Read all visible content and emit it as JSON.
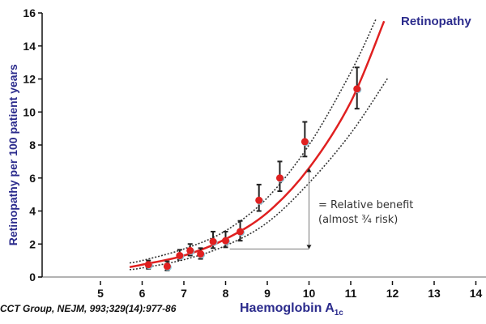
{
  "chart_data": {
    "type": "scatter",
    "title": "Retinopathy",
    "xlabel": "Haemoglobin A",
    "xlabel_subscript": "1c",
    "ylabel": "Retinopathy per 100 patient years",
    "xlim": [
      3.5,
      14.3
    ],
    "ylim": [
      0,
      16
    ],
    "x_ticks": [
      5,
      6,
      7,
      8,
      9,
      10,
      11,
      12,
      13,
      14
    ],
    "y_ticks": [
      0,
      2,
      4,
      6,
      8,
      10,
      12,
      14,
      16
    ],
    "grid": false,
    "points": {
      "x": [
        6.15,
        6.6,
        6.9,
        7.15,
        7.4,
        7.7,
        8.0,
        8.35,
        8.8,
        9.3,
        9.9,
        11.15
      ],
      "y": [
        0.75,
        0.65,
        1.3,
        1.6,
        1.4,
        2.15,
        2.2,
        2.75,
        4.65,
        6.0,
        8.2,
        11.4
      ],
      "err_low": [
        0.5,
        0.4,
        1.05,
        1.3,
        1.1,
        1.75,
        1.8,
        2.2,
        4.0,
        5.2,
        7.3,
        10.2
      ],
      "err_high": [
        1.0,
        0.95,
        1.65,
        2.0,
        1.75,
        2.75,
        2.75,
        3.4,
        5.6,
        7.0,
        9.4,
        12.7
      ],
      "color": "#e02020"
    },
    "fit_curve": {
      "x": [
        5.7,
        6,
        7,
        8,
        9,
        10,
        11,
        11.8
      ],
      "y": [
        0.6,
        0.75,
        1.3,
        2.3,
        3.9,
        6.6,
        10.6,
        15.5
      ],
      "color": "#e02020"
    },
    "ci_upper": {
      "x": [
        5.7,
        6,
        7,
        8,
        9,
        10,
        11,
        11.6
      ],
      "y": [
        0.85,
        1.0,
        1.7,
        2.8,
        4.8,
        8.0,
        12.4,
        15.6
      ]
    },
    "ci_lower": {
      "x": [
        5.7,
        6,
        7,
        8,
        9,
        10,
        11,
        11.9
      ],
      "y": [
        0.45,
        0.55,
        1.05,
        1.9,
        3.3,
        5.7,
        8.7,
        12.1
      ]
    },
    "annotation": {
      "line1": "= Relative benefit",
      "line2": "(almost ¾ risk)",
      "arrow_x": 10,
      "arrow_y_from": 1.7,
      "arrow_y_to": 6.6,
      "baseline_x_from": 8.1
    },
    "citation": "CCT Group, NEJM, 993;329(14):977-86"
  }
}
